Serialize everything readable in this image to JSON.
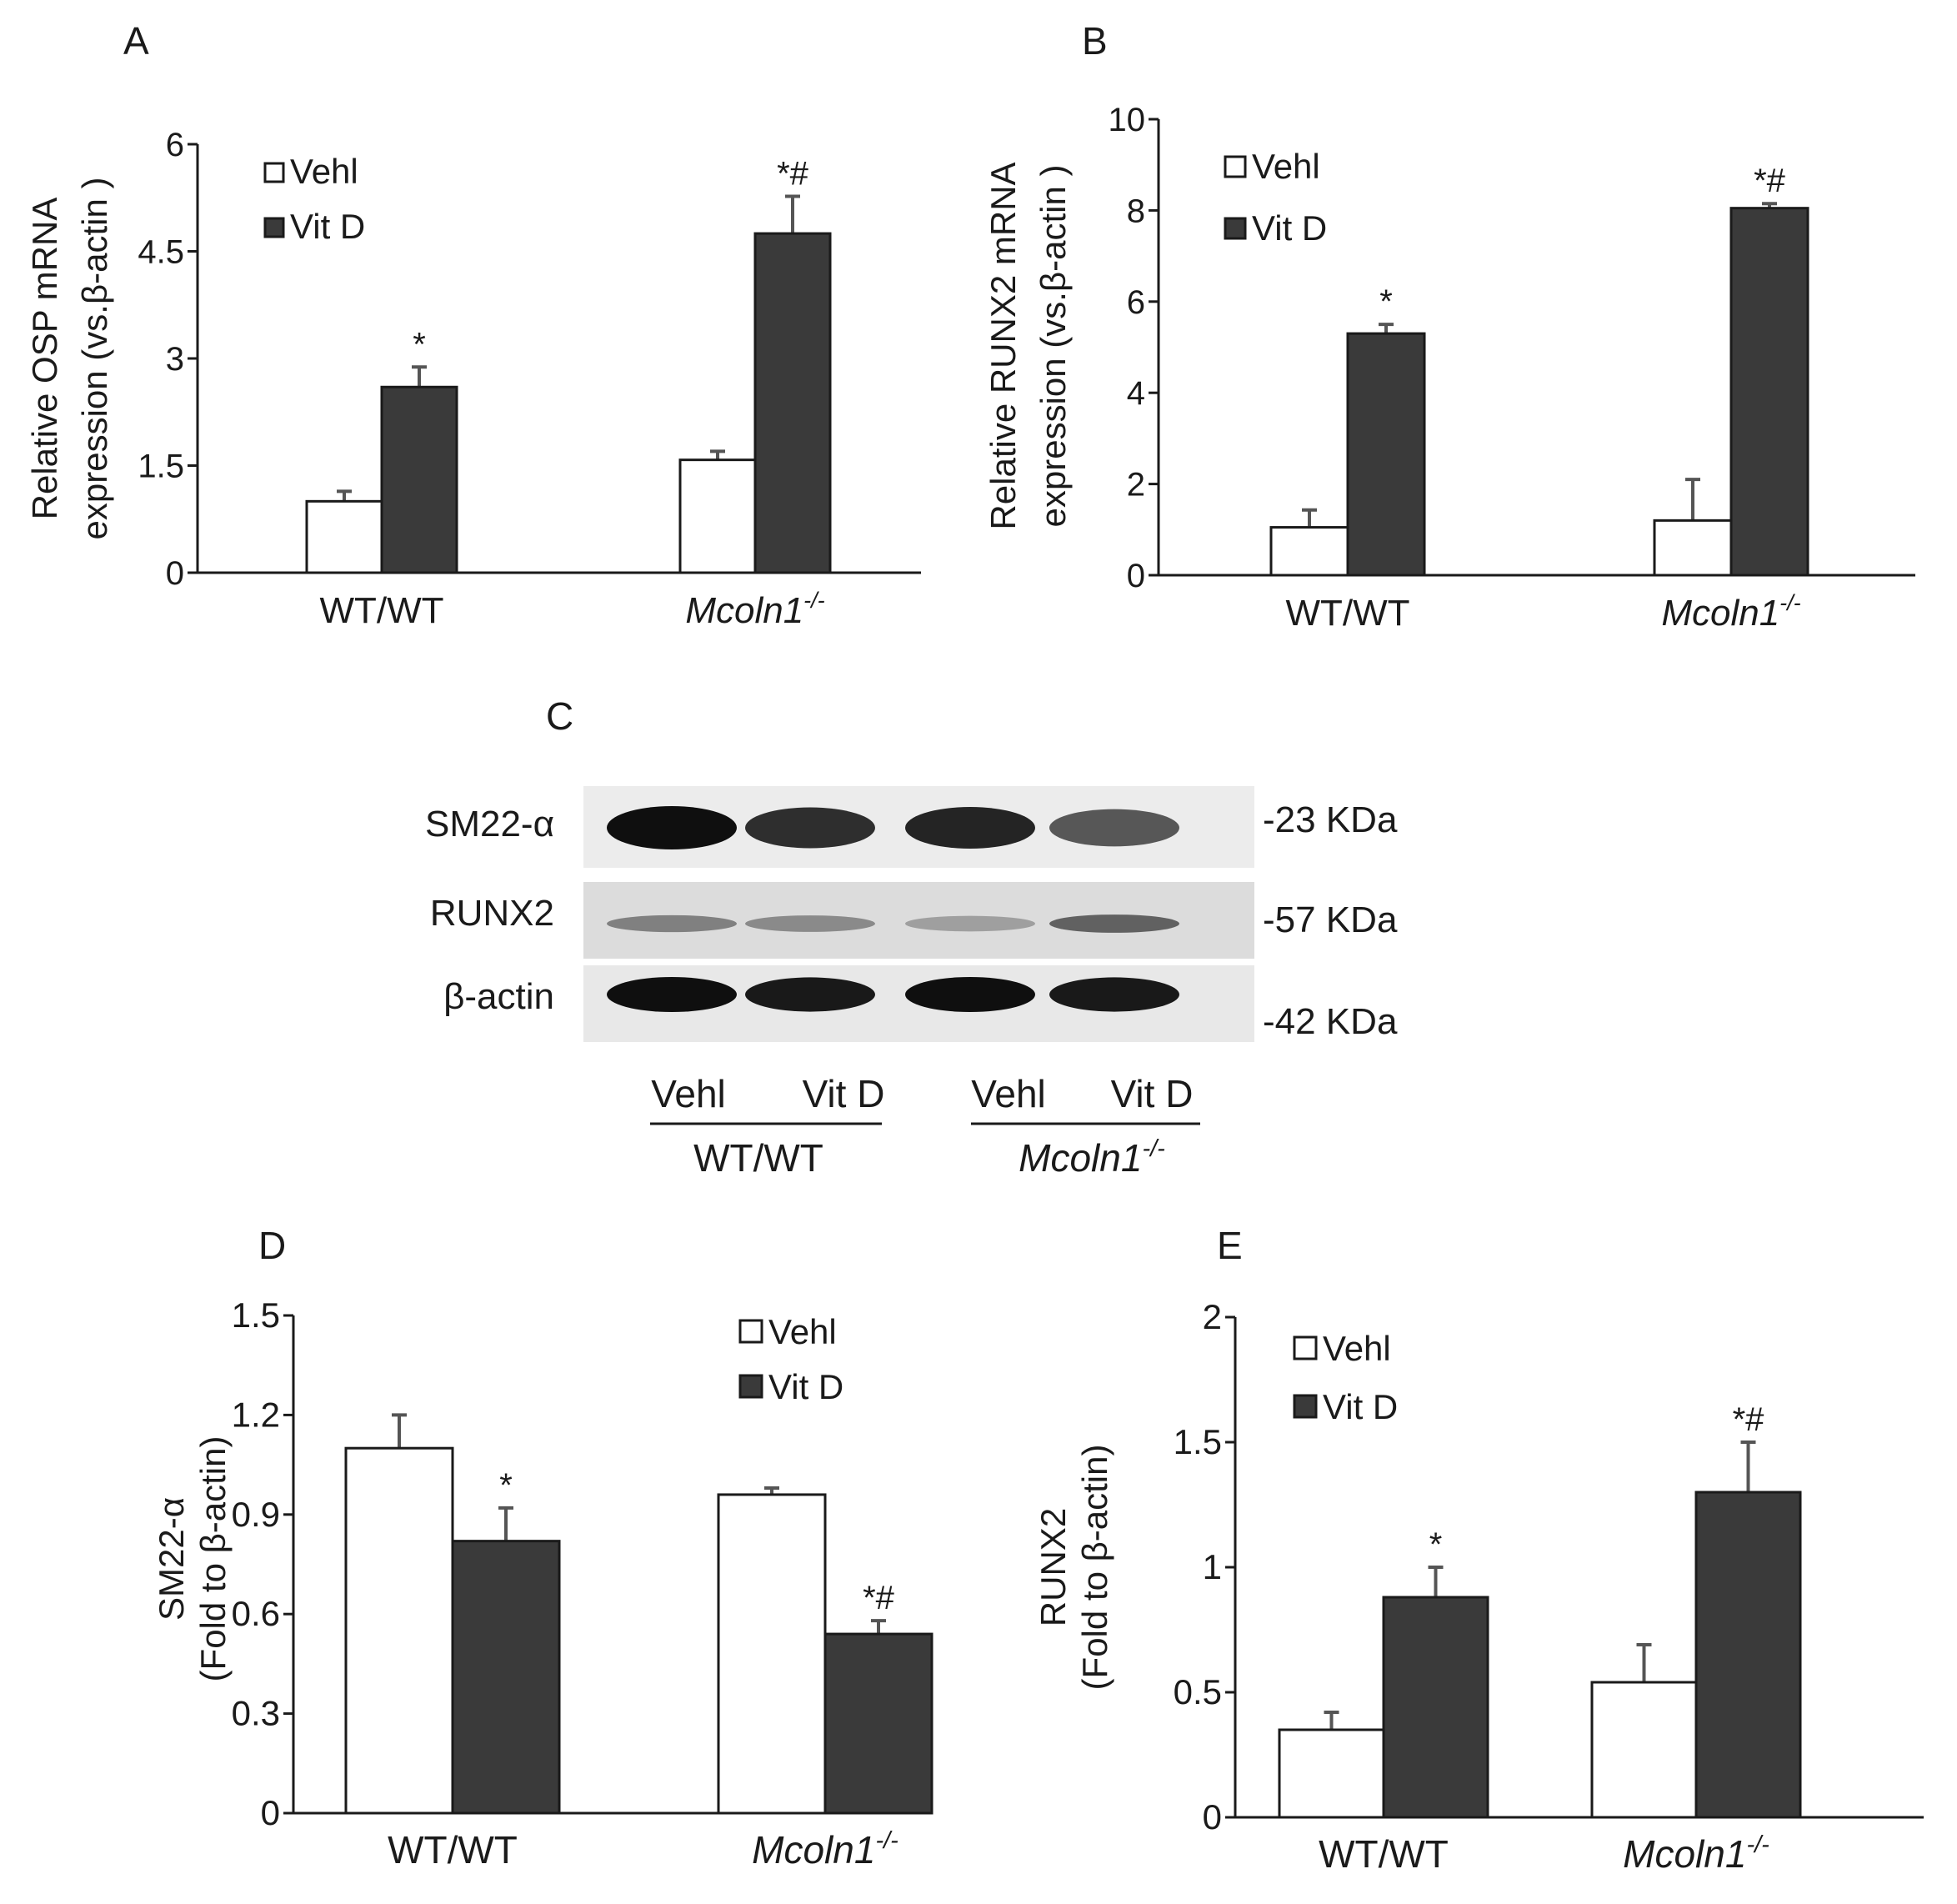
{
  "panels": {
    "A": "A",
    "B": "B",
    "C": "C",
    "D": "D",
    "E": "E"
  },
  "chart_data": [
    {
      "panel": "A",
      "type": "bar",
      "categories": [
        "WT/WT",
        "Mcoln1-/-"
      ],
      "category_display": [
        {
          "main": "WT/WT",
          "sup": "",
          "italic": false
        },
        {
          "main": "Mcoln1",
          "sup": "-/-",
          "italic": true
        }
      ],
      "series": [
        {
          "name": "Vehl",
          "values": [
            1.0,
            1.58
          ],
          "errors": [
            0.14,
            0.12
          ],
          "color": "#ffffff"
        },
        {
          "name": "Vit D",
          "values": [
            2.6,
            4.75
          ],
          "errors": [
            0.28,
            0.52
          ],
          "color": "#3a3a3a"
        }
      ],
      "annotations": [
        [
          "",
          "*"
        ],
        [
          "",
          "*#"
        ]
      ],
      "ylabel_lines": [
        "Relative OSP mRNA",
        "expression (vs.β-actin )"
      ],
      "ytick_labels": [
        "0",
        "1.5",
        "3",
        "4.5",
        "6"
      ],
      "ylim": [
        0,
        6
      ],
      "legend_position": "top-left",
      "grid": false
    },
    {
      "panel": "B",
      "type": "bar",
      "categories": [
        "WT/WT",
        "Mcoln1-/-"
      ],
      "category_display": [
        {
          "main": "WT/WT",
          "sup": "",
          "italic": false
        },
        {
          "main": "Mcoln1",
          "sup": "-/-",
          "italic": true
        }
      ],
      "series": [
        {
          "name": "Vehl",
          "values": [
            1.05,
            1.2
          ],
          "errors": [
            0.38,
            0.9
          ],
          "color": "#ffffff"
        },
        {
          "name": "Vit D",
          "values": [
            5.3,
            8.05
          ],
          "errors": [
            0.2,
            0.1
          ],
          "color": "#3a3a3a"
        }
      ],
      "annotations": [
        [
          "",
          "*"
        ],
        [
          "",
          "*#"
        ]
      ],
      "ylabel_lines": [
        "Relative RUNX2 mRNA",
        "expression (vs.β-actin )"
      ],
      "ytick_labels": [
        "0",
        "2",
        "4",
        "6",
        "8",
        "10"
      ],
      "ylim": [
        0,
        10
      ],
      "legend_position": "top-left",
      "grid": false
    },
    {
      "panel": "D",
      "type": "bar",
      "categories": [
        "WT/WT",
        "Mcoln1-/-"
      ],
      "category_display": [
        {
          "main": "WT/WT",
          "sup": "",
          "italic": false
        },
        {
          "main": "Mcoln1",
          "sup": "-/-",
          "italic": true
        }
      ],
      "series": [
        {
          "name": "Vehl",
          "values": [
            1.1,
            0.96
          ],
          "errors": [
            0.1,
            0.02
          ],
          "color": "#ffffff"
        },
        {
          "name": "Vit D",
          "values": [
            0.82,
            0.54
          ],
          "errors": [
            0.1,
            0.04
          ],
          "color": "#3a3a3a"
        }
      ],
      "annotations": [
        [
          "",
          "*"
        ],
        [
          "",
          "*#"
        ]
      ],
      "ylabel_lines": [
        "SM22-α",
        "(Fold to β-actin)"
      ],
      "ytick_labels": [
        "0",
        "0.3",
        "0.6",
        "0.9",
        "1.2",
        "1.5"
      ],
      "ylim": [
        0,
        1.5
      ],
      "legend_position": "top-right",
      "grid": false
    },
    {
      "panel": "E",
      "type": "bar",
      "categories": [
        "WT/WT",
        "Mcoln1-/-"
      ],
      "category_display": [
        {
          "main": "WT/WT",
          "sup": "",
          "italic": false
        },
        {
          "main": "Mcoln1",
          "sup": "-/-",
          "italic": true
        }
      ],
      "series": [
        {
          "name": "Vehl",
          "values": [
            0.35,
            0.54
          ],
          "errors": [
            0.07,
            0.15
          ],
          "color": "#ffffff"
        },
        {
          "name": "Vit D",
          "values": [
            0.88,
            1.3
          ],
          "errors": [
            0.12,
            0.2
          ],
          "color": "#3a3a3a"
        }
      ],
      "annotations": [
        [
          "",
          "*"
        ],
        [
          "",
          "*#"
        ]
      ],
      "ylabel_lines": [
        "RUNX2",
        "(Fold to β-actin)"
      ],
      "ytick_labels": [
        "0",
        "0.5",
        "1",
        "1.5",
        "2"
      ],
      "ylim": [
        0,
        2
      ],
      "legend_position": "top-left",
      "grid": false
    }
  ],
  "blot": {
    "rows": [
      {
        "label": "SM22-α",
        "size": "-23 KDa"
      },
      {
        "label": "RUNX2",
        "size": "-57 KDa"
      },
      {
        "label": "β-actin",
        "size": "-42 KDa"
      }
    ],
    "band_intensity": [
      [
        1.0,
        0.85,
        0.9,
        0.65
      ],
      [
        0.45,
        0.4,
        0.3,
        0.6
      ],
      [
        1.0,
        0.95,
        1.0,
        0.95
      ]
    ],
    "lanes": [
      "Vehl",
      "Vit D",
      "Vehl",
      "Vit D"
    ],
    "groups": [
      {
        "main": "WT/WT",
        "sup": "",
        "italic": false
      },
      {
        "main": "Mcoln1",
        "sup": "-/-",
        "italic": true
      }
    ]
  }
}
